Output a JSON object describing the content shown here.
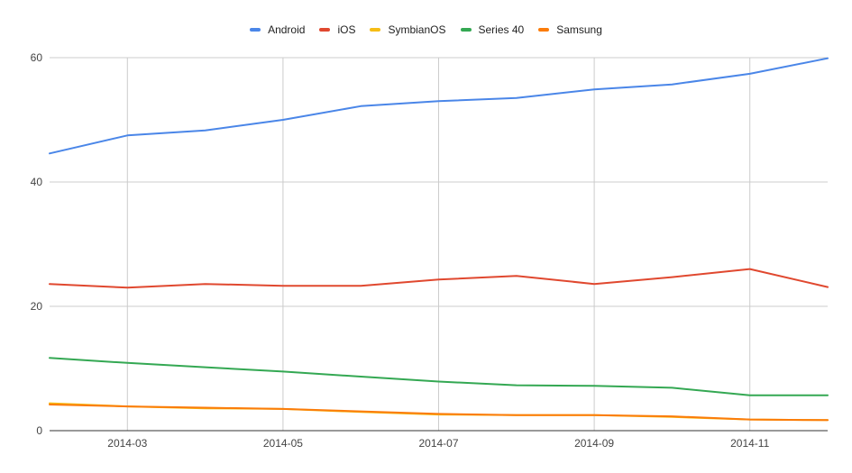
{
  "chart_data": {
    "type": "line",
    "title": "",
    "xlabel": "",
    "ylabel": "",
    "x": [
      "2014-02",
      "2014-03",
      "2014-04",
      "2014-05",
      "2014-06",
      "2014-07",
      "2014-08",
      "2014-09",
      "2014-10",
      "2014-11",
      "2014-12"
    ],
    "x_tick_labels": [
      "2014-03",
      "2014-05",
      "2014-07",
      "2014-09",
      "2014-11"
    ],
    "y_ticks": [
      0,
      20,
      40,
      60
    ],
    "ylim": [
      0,
      60
    ],
    "grid": true,
    "legend_position": "top",
    "series": [
      {
        "name": "Android",
        "color": "#4a86e8",
        "values": [
          44.6,
          47.5,
          48.3,
          50.0,
          52.2,
          53.0,
          53.5,
          54.9,
          55.7,
          57.4,
          59.9
        ]
      },
      {
        "name": "iOS",
        "color": "#e0482f",
        "values": [
          23.6,
          23.0,
          23.6,
          23.3,
          23.3,
          24.3,
          24.9,
          23.6,
          24.7,
          26.0,
          23.1
        ]
      },
      {
        "name": "SymbianOS",
        "color": "#f6bd16",
        "values": [
          4.4,
          3.9,
          3.6,
          3.5,
          3.0,
          2.6,
          2.5,
          2.5,
          2.2,
          1.8,
          1.7
        ]
      },
      {
        "name": "Series 40",
        "color": "#34a853",
        "values": [
          11.7,
          10.9,
          10.2,
          9.5,
          8.7,
          7.9,
          7.3,
          7.2,
          6.9,
          5.7,
          5.7
        ]
      },
      {
        "name": "Samsung",
        "color": "#fb7c0a",
        "values": [
          4.2,
          3.9,
          3.7,
          3.5,
          3.1,
          2.7,
          2.5,
          2.5,
          2.3,
          1.8,
          1.7
        ]
      }
    ]
  }
}
